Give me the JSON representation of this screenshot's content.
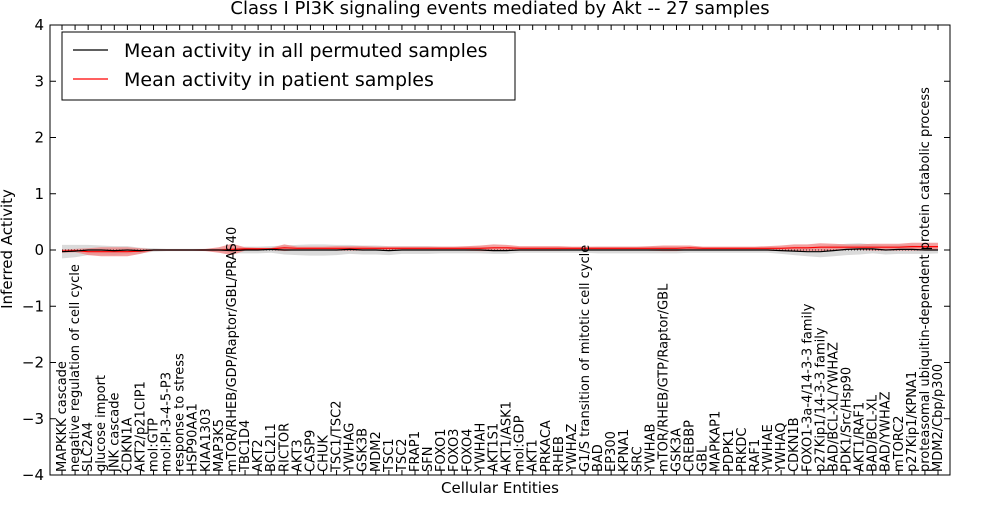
{
  "chart_data": {
    "type": "line",
    "title": "Class I PI3K signaling events mediated by Akt -- 27 samples",
    "xlabel": "Cellular Entities",
    "ylabel": "Inferred Activity",
    "ylim": [
      -4,
      4
    ],
    "yticks": [
      -4,
      -3,
      -2,
      -1,
      0,
      1,
      2,
      3,
      4
    ],
    "ytick_labels": [
      "−4",
      "−3",
      "−2",
      "−1",
      "0",
      "1",
      "2",
      "3",
      "4"
    ],
    "legend": {
      "position": "top-left",
      "entries": [
        {
          "label": "Mean activity in all permuted samples",
          "color": "#000000"
        },
        {
          "label": "Mean activity in patient samples",
          "color": "#ff0000"
        }
      ]
    },
    "colors": {
      "permuted_line": "#000000",
      "patient_line": "#ff0000",
      "permuted_band": "#bbbbbb",
      "patient_band": "#f08080"
    },
    "categories": [
      "MAPKKK cascade",
      "negative regulation of cell cycle",
      "SLC2A4",
      "glucose import",
      "JNK cascade",
      "CDKN1A",
      "AKT2/p21CIP1",
      "mol:GTP",
      "mol:PI-3-4-5-P3",
      "response to stress",
      "HSP90AA1",
      "KIAA1303",
      "MAP3K5",
      "mTOR/RHEB/GDP/Raptor/GBL/PRAS40",
      "TBC1D4",
      "AKT2",
      "BCL2L1",
      "RICTOR",
      "AKT3",
      "CASP9",
      "CHUK",
      "TSC1/TSC2",
      "YWHAG",
      "GSK3B",
      "MDM2",
      "TSC1",
      "TSC2",
      "FRAP1",
      "SFN",
      "FOXO1",
      "FOXO3",
      "FOXO4",
      "YWHAH",
      "AKT1S1",
      "AKT1/ASK1",
      "mol:GDP",
      "AKT1",
      "PRKACA",
      "RHEB",
      "YWHAZ",
      "G1/S transition of mitotic cell cycle",
      "BAD",
      "EP300",
      "KPNA1",
      "SRC",
      "YWHAB",
      "mTOR/RHEB/GTP/Raptor/GBL",
      "GSK3A",
      "CREBBP",
      "GBL",
      "MAPKAP1",
      "PDPK1",
      "PRKDC",
      "RAF1",
      "YWHAE",
      "YWHAQ",
      "CDKN1B",
      "FOXO1-3a-4/14-3-3 family",
      "p27Kip1/14-3-3 family",
      "BAD/BCL-XL/YWHAZ",
      "PDK1/Src/Hsp90",
      "AKT1/RAF1",
      "BAD/BCL-XL",
      "BAD/YWHAZ",
      "mTORC2",
      "p27Kip1/KPNA1",
      "proteasomal ubiquitin-dependent protein catabolic process",
      "MDM2/Cbp/p300"
    ],
    "series": [
      {
        "name": "Mean activity in all permuted samples",
        "values": [
          -0.03,
          -0.02,
          0,
          0,
          -0.01,
          0,
          -0.01,
          0,
          0,
          0,
          0,
          0,
          0,
          -0.01,
          0,
          0,
          0.01,
          0,
          0,
          0,
          0,
          0,
          0.01,
          0,
          0,
          -0.01,
          0,
          0,
          0,
          0,
          0,
          0,
          0,
          -0.01,
          -0.01,
          0,
          0,
          0,
          0,
          0,
          0,
          0,
          0,
          0,
          0,
          0,
          0,
          0,
          0,
          0,
          0,
          0,
          0,
          0,
          0,
          -0.01,
          -0.02,
          -0.03,
          -0.03,
          -0.01,
          0.01,
          0.02,
          0.02,
          0,
          0.01,
          0.01,
          0,
          0
        ]
      },
      {
        "name": "Mean activity in patient samples",
        "values": [
          -0.02,
          -0.01,
          -0.03,
          -0.03,
          -0.03,
          -0.03,
          -0.02,
          0,
          0,
          0,
          0,
          0,
          0,
          0.01,
          0.02,
          0.02,
          0.02,
          0.04,
          0.03,
          0.03,
          0.03,
          0.03,
          0.03,
          0.03,
          0.03,
          0.03,
          0.03,
          0.03,
          0.03,
          0.03,
          0.03,
          0.03,
          0.03,
          0.04,
          0.04,
          0.03,
          0.03,
          0.03,
          0.03,
          0.03,
          0.03,
          0.03,
          0.03,
          0.03,
          0.03,
          0.03,
          0.03,
          0.03,
          0.04,
          0.03,
          0.03,
          0.03,
          0.03,
          0.03,
          0.03,
          0.03,
          0.04,
          0.04,
          0.05,
          0.05,
          0.05,
          0.05,
          0.05,
          0.05,
          0.05,
          0.06,
          0.06,
          0.06
        ]
      }
    ],
    "bands": {
      "permuted_spread": [
        0.12,
        0.11,
        0.09,
        0.08,
        0.08,
        0.07,
        0.05,
        0.03,
        0.02,
        0.02,
        0.02,
        0.02,
        0.03,
        0.05,
        0.06,
        0.06,
        0.06,
        0.08,
        0.09,
        0.1,
        0.1,
        0.09,
        0.08,
        0.08,
        0.08,
        0.08,
        0.07,
        0.07,
        0.07,
        0.06,
        0.06,
        0.06,
        0.06,
        0.06,
        0.06,
        0.05,
        0.05,
        0.05,
        0.05,
        0.05,
        0.05,
        0.06,
        0.06,
        0.06,
        0.06,
        0.06,
        0.06,
        0.06,
        0.05,
        0.05,
        0.05,
        0.05,
        0.05,
        0.05,
        0.05,
        0.06,
        0.07,
        0.08,
        0.1,
        0.1,
        0.1,
        0.1,
        0.08,
        0.08,
        0.08,
        0.08,
        0.07,
        0.06
      ],
      "patient_spread": [
        0.03,
        0.03,
        0.06,
        0.08,
        0.08,
        0.08,
        0.05,
        0.01,
        0.01,
        0.01,
        0.01,
        0.02,
        0.05,
        0.1,
        0.03,
        0.02,
        0.02,
        0.06,
        0.03,
        0.03,
        0.03,
        0.04,
        0.04,
        0.04,
        0.03,
        0.03,
        0.03,
        0.03,
        0.03,
        0.03,
        0.03,
        0.04,
        0.05,
        0.06,
        0.05,
        0.04,
        0.04,
        0.04,
        0.04,
        0.03,
        0.03,
        0.03,
        0.03,
        0.03,
        0.03,
        0.04,
        0.05,
        0.05,
        0.04,
        0.03,
        0.03,
        0.03,
        0.03,
        0.03,
        0.04,
        0.05,
        0.06,
        0.06,
        0.07,
        0.06,
        0.05,
        0.05,
        0.06,
        0.06,
        0.06,
        0.07,
        0.07,
        0.07
      ]
    }
  }
}
